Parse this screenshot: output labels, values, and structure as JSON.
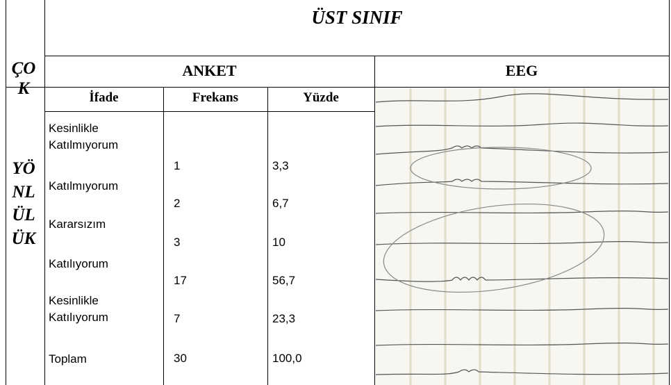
{
  "header": {
    "title": "ÜST SINIF",
    "survey": "ANKET",
    "eeg": "EEG"
  },
  "side_label": [
    "ÇOK",
    "YÖNLÜLÜK"
  ],
  "table": {
    "columns": [
      "İfade",
      "Frekans",
      "Yüzde"
    ],
    "rows": [
      [
        "Kesinlikle Katılmıyorum",
        1,
        "3,3"
      ],
      [
        "Katılmıyorum",
        2,
        "6,7"
      ],
      [
        "Kararsızım",
        3,
        "10"
      ],
      [
        "Katılıyorum",
        17,
        "56,7"
      ],
      [
        "Kesinlikle Katılıyorum",
        7,
        "23,3"
      ],
      [
        "Toplam",
        30,
        "100,0"
      ]
    ]
  }
}
